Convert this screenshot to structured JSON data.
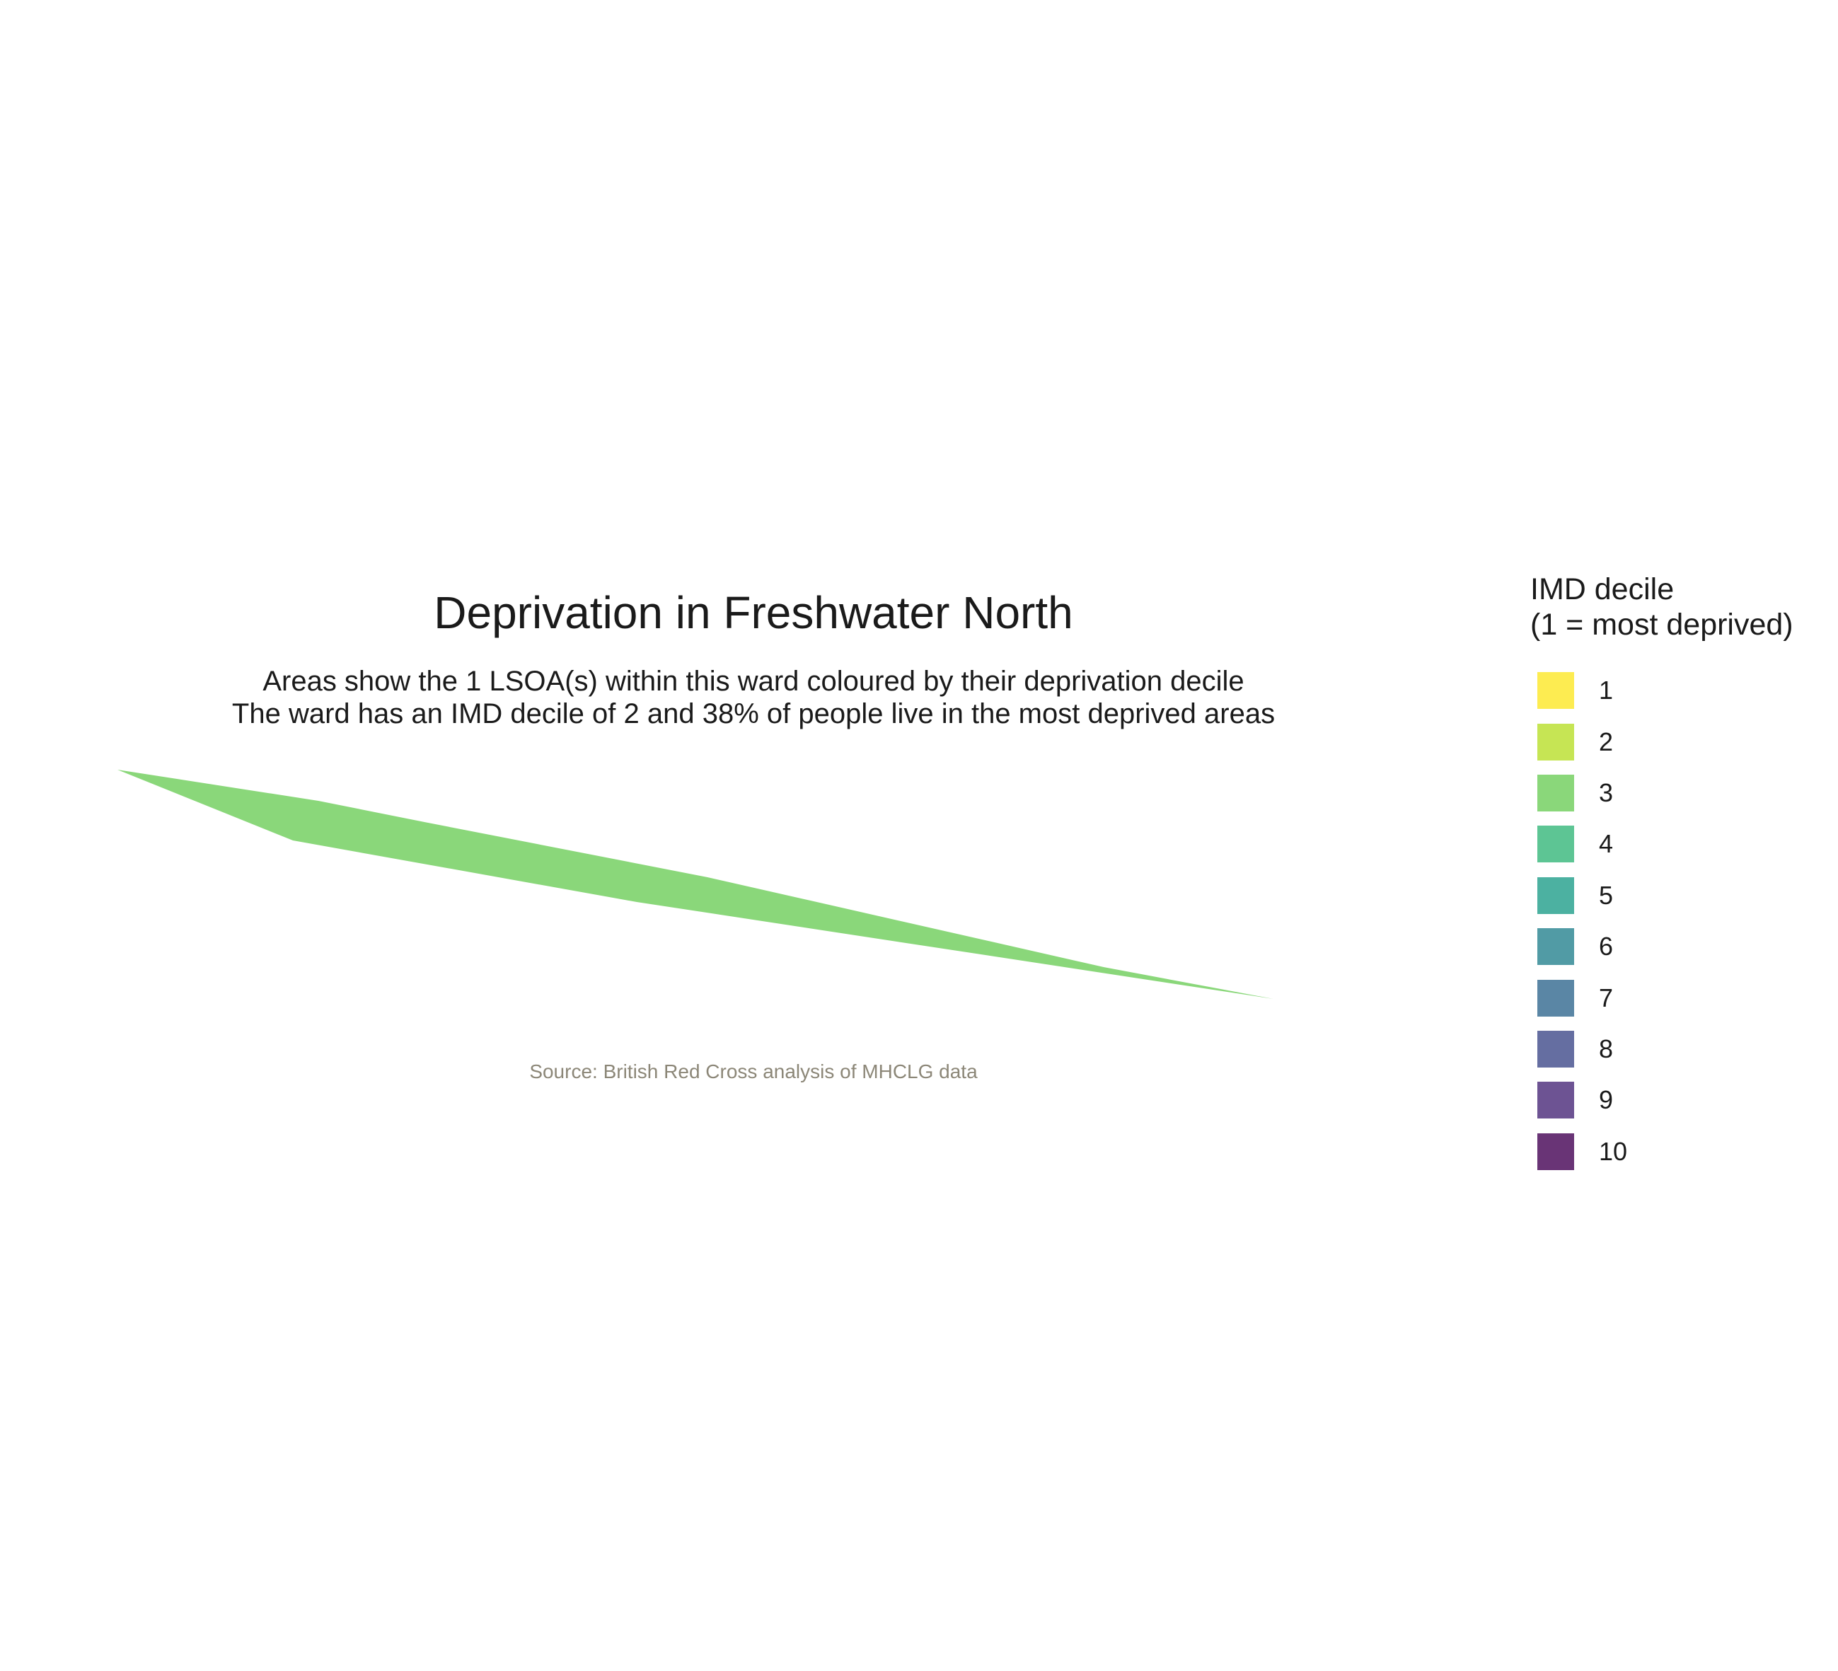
{
  "title": "Deprivation in Freshwater North",
  "subtitle": [
    "Areas show the 1 LSOA(s) within this ward coloured by their deprivation decile",
    "The ward has an IMD decile of 2 and 38% of people live in the most deprived areas"
  ],
  "caption": "Source: British Red Cross analysis of MHCLG data",
  "legend": {
    "title_lines": [
      "IMD decile",
      "(1 = most deprived)"
    ],
    "items": [
      {
        "label": "1",
        "color": "#FDE725"
      },
      {
        "label": "2",
        "color": "#B8DE29"
      },
      {
        "label": "3",
        "color": "#6DCD59"
      },
      {
        "label": "4",
        "color": "#35B779"
      },
      {
        "label": "5",
        "color": "#1F9E89"
      },
      {
        "label": "6",
        "color": "#26828E"
      },
      {
        "label": "7",
        "color": "#31688E"
      },
      {
        "label": "8",
        "color": "#3E4A89"
      },
      {
        "label": "9",
        "color": "#482878"
      },
      {
        "label": "10",
        "color": "#440154"
      }
    ]
  },
  "map": {
    "areas": [
      {
        "name": "LSOA",
        "decile": 3,
        "fill": "#6DCD59",
        "opacity": 0.8
      }
    ]
  }
}
